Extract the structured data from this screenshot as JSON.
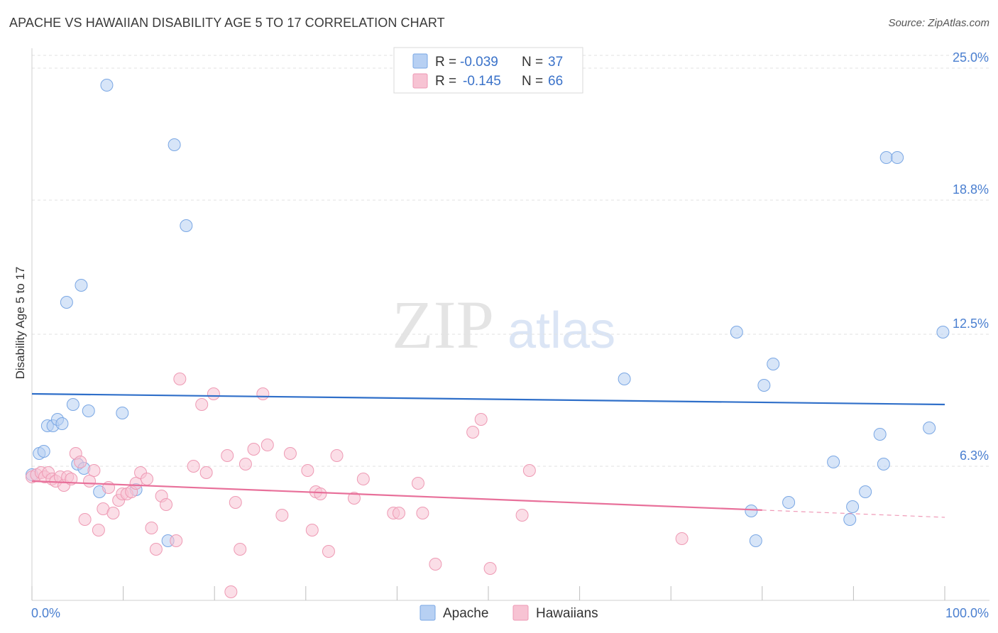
{
  "title": "APACHE VS HAWAIIAN DISABILITY AGE 5 TO 17 CORRELATION CHART",
  "source": "Source: ZipAtlas.com",
  "watermark": {
    "zip": "ZIP",
    "atlas": "atlas"
  },
  "chart_data": {
    "type": "scatter",
    "title": "APACHE VS HAWAIIAN DISABILITY AGE 5 TO 17 CORRELATION CHART",
    "xlabel": "",
    "ylabel": "Disability Age 5 to 17",
    "xlim": [
      0,
      100
    ],
    "ylim": [
      0,
      25.6
    ],
    "x_tick_labels": [
      "0.0%",
      "100.0%"
    ],
    "y_ticks": [
      6.3,
      12.5,
      18.8,
      25.0
    ],
    "y_tick_labels": [
      "6.3%",
      "12.5%",
      "18.8%",
      "25.0%"
    ],
    "grid": true,
    "legend_position": "top-center",
    "legend": [
      {
        "name": "Apache",
        "r_label": "R =",
        "r_value": "-0.039",
        "n_label": "N =",
        "n_value": "37"
      },
      {
        "name": "Hawaiians",
        "r_label": "R =",
        "r_value": "-0.145",
        "n_label": "N =",
        "n_value": "66"
      }
    ],
    "colors": {
      "Apache": {
        "fill": "#b7d0f3",
        "stroke": "#7aa7e4",
        "line": "#2f6fc9"
      },
      "Hawaiians": {
        "fill": "#f7c3d3",
        "stroke": "#ee9ab4",
        "line": "#e8709a"
      }
    },
    "series": [
      {
        "name": "Apache",
        "trend": {
          "x0": 0,
          "y0": 9.7,
          "x1": 100,
          "y1": 9.2,
          "dashed_from": null
        },
        "points": [
          [
            0.0,
            5.9
          ],
          [
            0.8,
            6.9
          ],
          [
            1.3,
            7.0
          ],
          [
            1.7,
            8.2
          ],
          [
            2.3,
            8.2
          ],
          [
            2.8,
            8.5
          ],
          [
            3.3,
            8.3
          ],
          [
            3.8,
            14.0
          ],
          [
            4.5,
            9.2
          ],
          [
            5.0,
            6.4
          ],
          [
            5.4,
            14.8
          ],
          [
            5.7,
            6.2
          ],
          [
            6.2,
            8.9
          ],
          [
            7.4,
            5.1
          ],
          [
            8.2,
            24.2
          ],
          [
            9.9,
            8.8
          ],
          [
            11.4,
            5.2
          ],
          [
            14.9,
            2.8
          ],
          [
            15.6,
            21.4
          ],
          [
            16.9,
            17.6
          ],
          [
            64.9,
            10.4
          ],
          [
            77.2,
            12.6
          ],
          [
            78.8,
            4.2
          ],
          [
            79.3,
            2.8
          ],
          [
            80.2,
            10.1
          ],
          [
            81.2,
            11.1
          ],
          [
            82.9,
            4.6
          ],
          [
            87.8,
            6.5
          ],
          [
            89.6,
            3.8
          ],
          [
            89.9,
            4.4
          ],
          [
            91.3,
            5.1
          ],
          [
            92.9,
            7.8
          ],
          [
            93.3,
            6.4
          ],
          [
            93.6,
            20.8
          ],
          [
            94.8,
            20.8
          ],
          [
            98.3,
            8.1
          ],
          [
            99.8,
            12.6
          ]
        ]
      },
      {
        "name": "Hawaiians",
        "trend": {
          "x0": 0,
          "y0": 5.6,
          "x1": 100,
          "y1": 3.9,
          "dashed_from": 80
        },
        "points": [
          [
            0.0,
            5.8
          ],
          [
            0.5,
            5.9
          ],
          [
            1.0,
            6.0
          ],
          [
            1.4,
            5.8
          ],
          [
            1.8,
            6.0
          ],
          [
            2.2,
            5.7
          ],
          [
            2.6,
            5.6
          ],
          [
            3.1,
            5.8
          ],
          [
            3.5,
            5.4
          ],
          [
            3.9,
            5.8
          ],
          [
            4.3,
            5.7
          ],
          [
            4.8,
            6.9
          ],
          [
            5.3,
            6.5
          ],
          [
            5.8,
            3.8
          ],
          [
            6.3,
            5.6
          ],
          [
            6.8,
            6.1
          ],
          [
            7.3,
            3.3
          ],
          [
            7.8,
            4.3
          ],
          [
            8.4,
            5.3
          ],
          [
            8.9,
            4.1
          ],
          [
            9.5,
            4.7
          ],
          [
            9.9,
            5.0
          ],
          [
            10.4,
            5.0
          ],
          [
            10.9,
            5.1
          ],
          [
            11.4,
            5.5
          ],
          [
            11.9,
            6.0
          ],
          [
            12.6,
            5.7
          ],
          [
            13.1,
            3.4
          ],
          [
            13.6,
            2.4
          ],
          [
            14.2,
            4.9
          ],
          [
            14.7,
            4.5
          ],
          [
            15.8,
            2.8
          ],
          [
            16.2,
            10.4
          ],
          [
            17.7,
            6.3
          ],
          [
            18.6,
            9.2
          ],
          [
            19.1,
            6.0
          ],
          [
            19.9,
            9.7
          ],
          [
            21.4,
            6.8
          ],
          [
            21.8,
            0.4
          ],
          [
            22.3,
            4.6
          ],
          [
            22.8,
            2.4
          ],
          [
            23.4,
            6.4
          ],
          [
            24.3,
            7.1
          ],
          [
            25.3,
            9.7
          ],
          [
            25.8,
            7.3
          ],
          [
            27.4,
            4.0
          ],
          [
            28.3,
            6.9
          ],
          [
            30.2,
            6.1
          ],
          [
            30.7,
            3.3
          ],
          [
            31.1,
            5.1
          ],
          [
            31.6,
            5.0
          ],
          [
            32.5,
            2.3
          ],
          [
            33.4,
            6.8
          ],
          [
            35.3,
            4.8
          ],
          [
            36.3,
            5.7
          ],
          [
            39.6,
            4.1
          ],
          [
            40.2,
            4.1
          ],
          [
            42.3,
            5.5
          ],
          [
            42.8,
            4.1
          ],
          [
            44.2,
            1.7
          ],
          [
            48.3,
            7.9
          ],
          [
            49.2,
            8.5
          ],
          [
            50.2,
            1.5
          ],
          [
            53.7,
            4.0
          ],
          [
            54.5,
            6.1
          ],
          [
            71.2,
            2.9
          ]
        ]
      }
    ]
  }
}
